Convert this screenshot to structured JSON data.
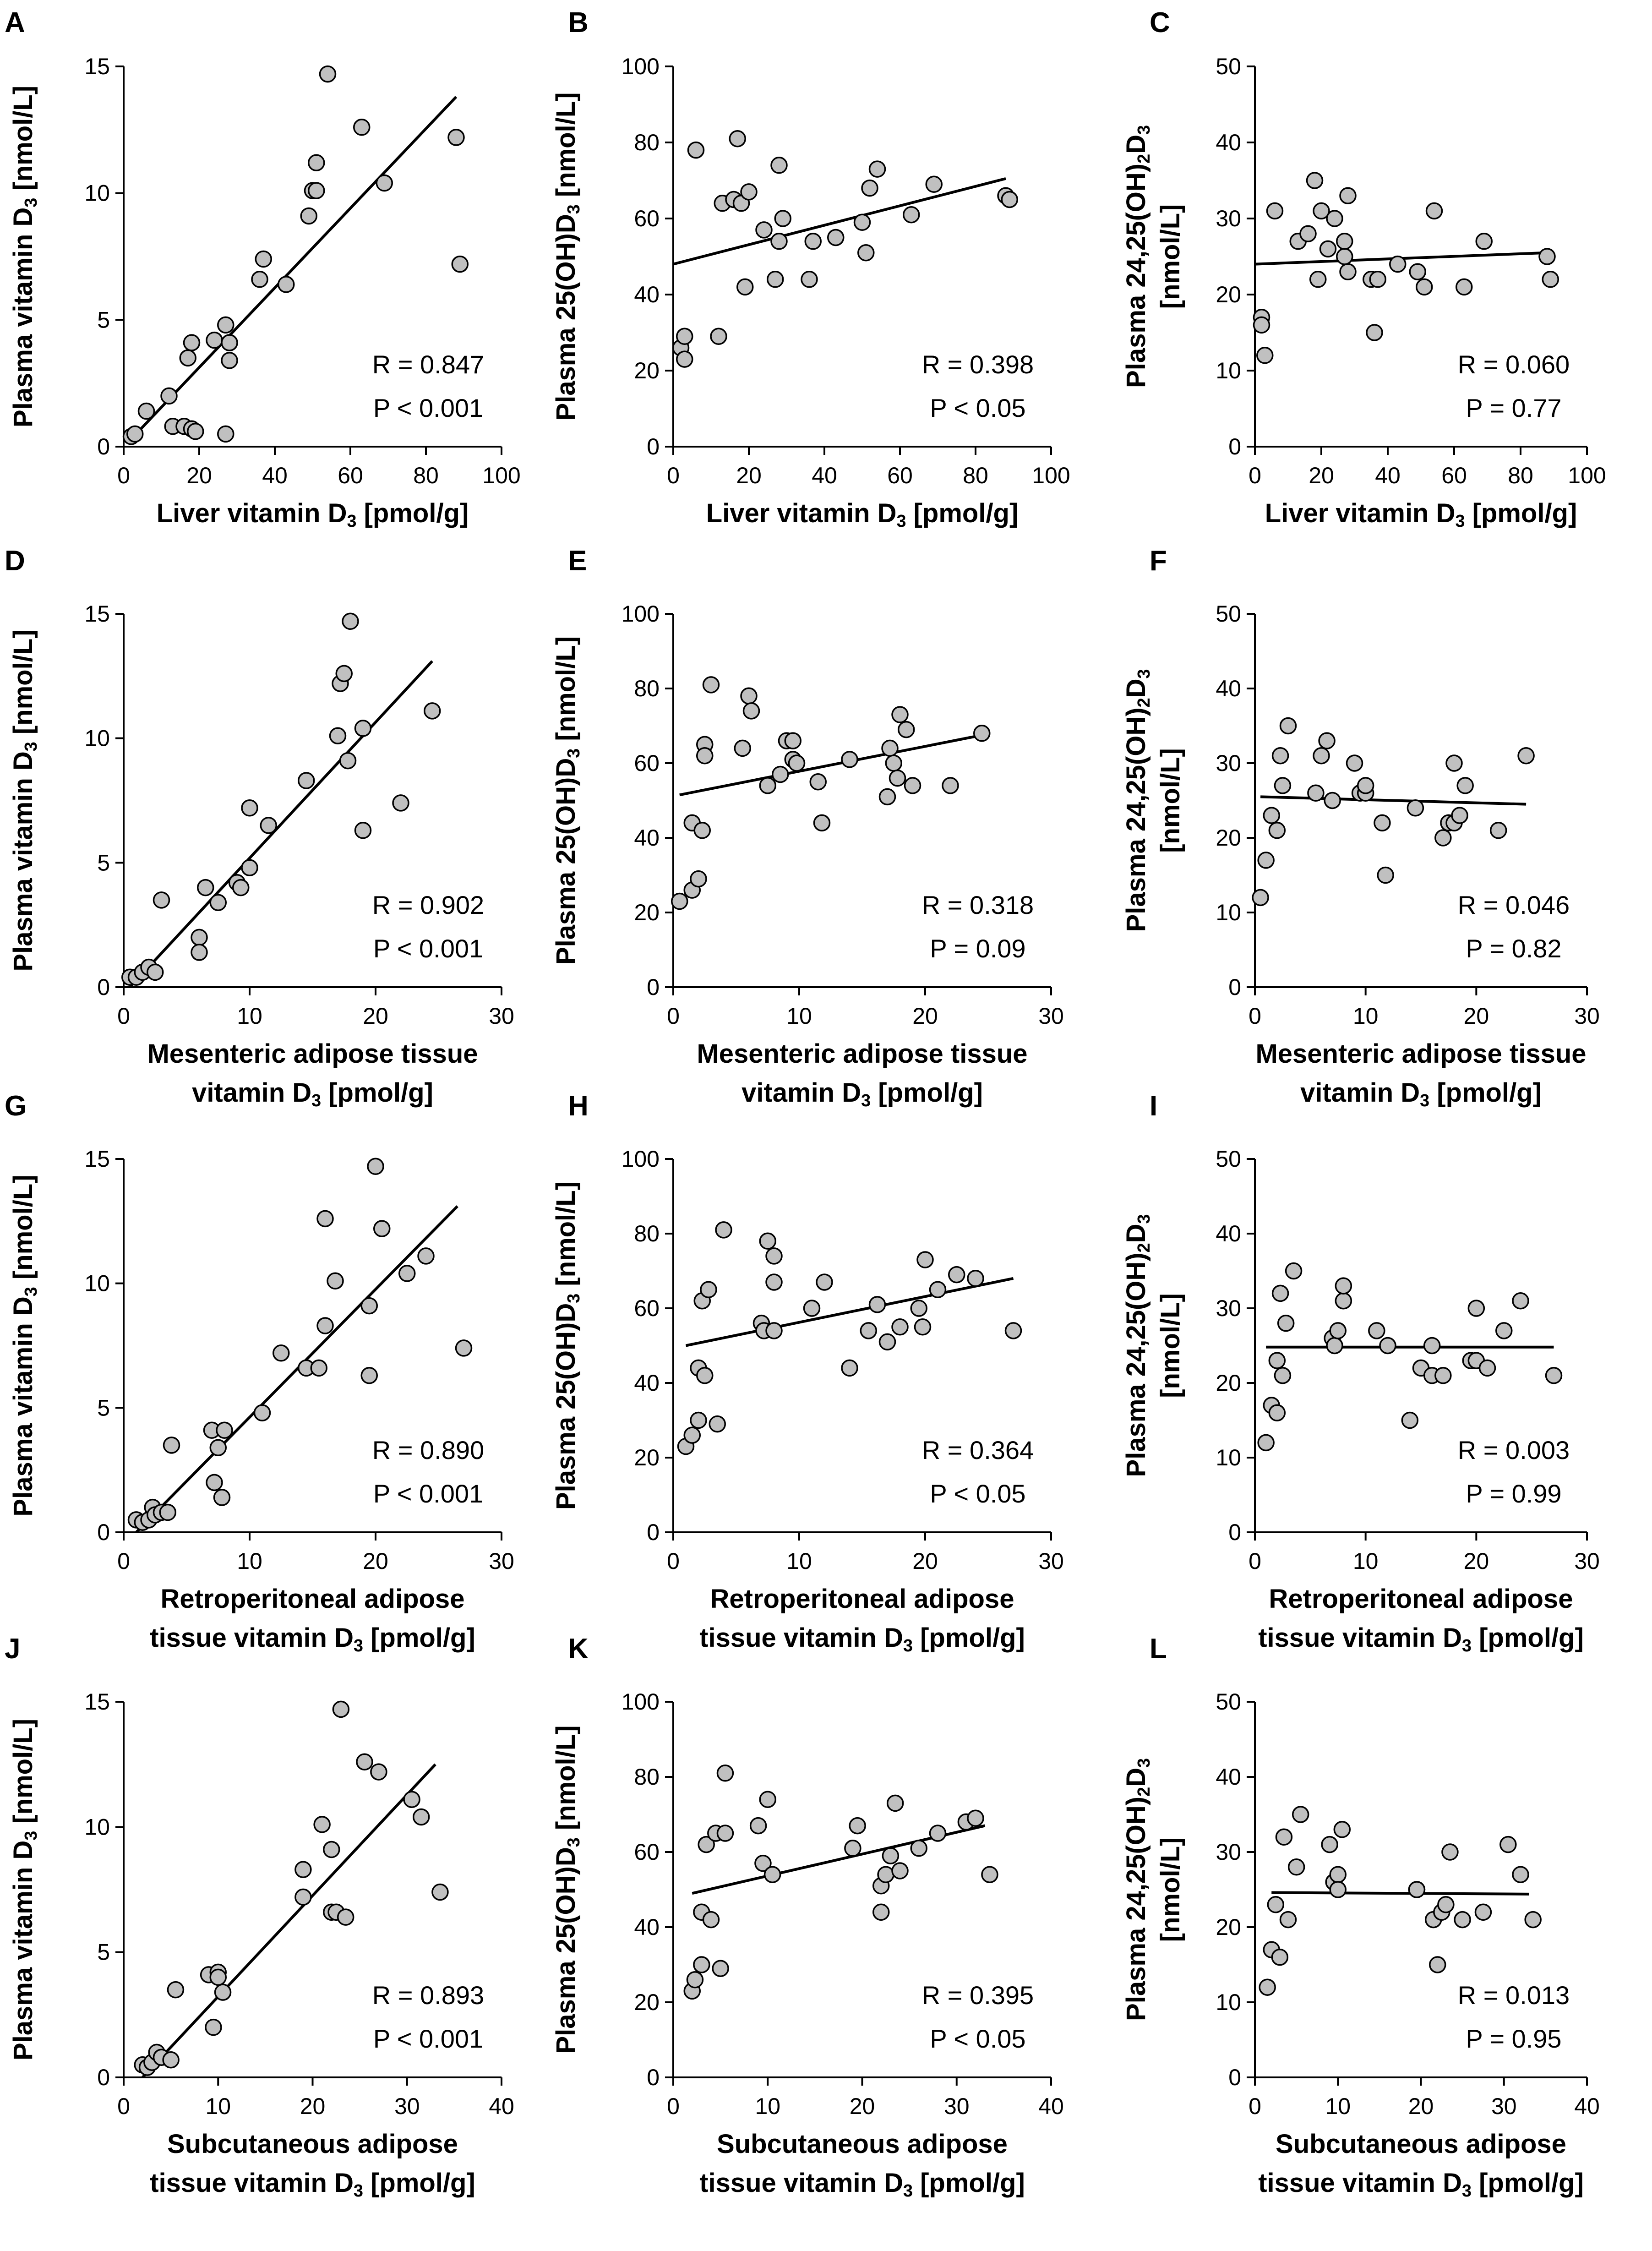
{
  "chart_data": [
    {
      "type": "scatter",
      "panel": "A",
      "xlabel": "Liver vitamin D3 [pmol/g]",
      "ylabel": "Plasma vitamin D3 [nmol/L]",
      "xlim": [
        0,
        100
      ],
      "ylim": [
        0,
        15
      ],
      "xticks": [
        0,
        20,
        40,
        60,
        80,
        100
      ],
      "yticks": [
        0,
        5,
        10,
        15
      ],
      "x": [
        2,
        3,
        6,
        12,
        13,
        16,
        17,
        18,
        19,
        18,
        24,
        27,
        28,
        28,
        27,
        28,
        36,
        37,
        43,
        49,
        50,
        51,
        51,
        54,
        63,
        69,
        88,
        89
      ],
      "y": [
        0.4,
        0.5,
        1.4,
        2,
        0.8,
        0.8,
        3.5,
        0.7,
        0.6,
        4.1,
        4.2,
        4.8,
        4.1,
        3.4,
        0.5,
        4.1,
        6.6,
        7.4,
        6.4,
        9.1,
        10.1,
        11.2,
        10.1,
        14.7,
        12.6,
        10.4,
        12.2,
        7.2
      ],
      "fit": [
        [
          2,
          0.3
        ],
        [
          88,
          13.8
        ]
      ],
      "stats": [
        "R = 0.847",
        "P < 0.001"
      ]
    },
    {
      "type": "scatter",
      "panel": "B",
      "xlabel": "Liver vitamin D3 [pmol/g]",
      "ylabel": "Plasma 25(OH)D3 [nmol/L]",
      "xlim": [
        0,
        100
      ],
      "ylim": [
        0,
        100
      ],
      "xticks": [
        0,
        20,
        40,
        60,
        80,
        100
      ],
      "yticks": [
        0,
        20,
        40,
        60,
        80,
        100
      ],
      "x": [
        2,
        3,
        3,
        6,
        12,
        13,
        16,
        17,
        18,
        19,
        20,
        24,
        27,
        28,
        28,
        29,
        36,
        37,
        43,
        50,
        51,
        52,
        54,
        63,
        69,
        88,
        89
      ],
      "y": [
        26,
        23,
        29,
        78,
        29,
        64,
        65,
        81,
        64,
        42,
        67,
        57,
        44,
        54,
        74,
        60,
        44,
        54,
        55,
        59,
        51,
        68,
        73,
        61,
        69,
        66,
        65
      ],
      "fit": [
        [
          0,
          48
        ],
        [
          88,
          70.5
        ]
      ],
      "stats": [
        "R = 0.398",
        "P < 0.05"
      ]
    },
    {
      "type": "scatter",
      "panel": "C",
      "xlabel": "Liver vitamin D3 [pmol/g]",
      "ylabel": "Plasma 24,25(OH)2D3 [nmol/L]",
      "xlim": [
        0,
        100
      ],
      "ylim": [
        0,
        50
      ],
      "xticks": [
        0,
        20,
        40,
        60,
        80,
        100
      ],
      "yticks": [
        0,
        10,
        20,
        30,
        40,
        50
      ],
      "x": [
        2,
        2,
        3,
        6,
        13,
        16,
        18,
        19,
        20,
        22,
        24,
        27,
        27,
        28,
        28,
        35,
        36,
        37,
        43,
        49,
        51,
        54,
        63,
        69,
        88,
        89
      ],
      "y": [
        17,
        16,
        12,
        31,
        27,
        28,
        35,
        22,
        31,
        26,
        30,
        25,
        27,
        23,
        33,
        22,
        15,
        22,
        24,
        23,
        21,
        31,
        21,
        27,
        25,
        22
      ],
      "fit": [
        [
          0,
          24
        ],
        [
          88,
          25.5
        ]
      ],
      "stats": [
        "R = 0.060",
        "P = 0.77"
      ]
    },
    {
      "type": "scatter",
      "panel": "D",
      "xlabel": "Mesenteric adipose tissue vitamin D3 [pmol/g]",
      "ylabel": "Plasma vitamin D3 [nmol/L]",
      "xlim": [
        0,
        30
      ],
      "ylim": [
        0,
        15
      ],
      "xticks": [
        0,
        10,
        20,
        30
      ],
      "yticks": [
        0,
        5,
        10,
        15
      ],
      "x": [
        0.5,
        1,
        1.5,
        2,
        2.5,
        3,
        6,
        6,
        6.5,
        7.5,
        9,
        9.3,
        10,
        10,
        11.5,
        14.5,
        17,
        17.2,
        17.5,
        17.8,
        18,
        19,
        19,
        22,
        24.5
      ],
      "y": [
        0.4,
        0.4,
        0.6,
        0.8,
        0.6,
        3.5,
        2,
        1.4,
        4,
        3.4,
        4.2,
        4,
        4.8,
        7.2,
        6.5,
        8.3,
        10.1,
        12.2,
        12.6,
        9.1,
        14.7,
        6.3,
        10.4,
        7.4,
        11.1
      ],
      "fit": [
        [
          0.5,
          0
        ],
        [
          24.5,
          13.1
        ]
      ],
      "stats": [
        "R = 0.902",
        "P < 0.001"
      ]
    },
    {
      "type": "scatter",
      "panel": "E",
      "xlabel": "Mesenteric adipose tissue vitamin D3 [pmol/g]",
      "ylabel": "Plasma 25(OH)D3 [nmol/L]",
      "xlim": [
        0,
        30
      ],
      "ylim": [
        0,
        100
      ],
      "xticks": [
        0,
        10,
        20,
        30
      ],
      "yticks": [
        0,
        20,
        40,
        60,
        80,
        100
      ],
      "x": [
        0.5,
        1.5,
        1.5,
        2,
        2.3,
        2.5,
        2.5,
        3,
        5.5,
        6,
        6.2,
        7.5,
        8.5,
        9,
        9.5,
        9.5,
        9.8,
        11.5,
        11.8,
        14,
        17,
        17.2,
        17.5,
        17.8,
        18,
        18.5,
        19,
        22,
        24.5
      ],
      "y": [
        23,
        26,
        44,
        29,
        42,
        65,
        62,
        81,
        64,
        78,
        74,
        54,
        57,
        66,
        66,
        61,
        60,
        55,
        44,
        61,
        51,
        64,
        60,
        56,
        73,
        69,
        54,
        54,
        68
      ],
      "fit": [
        [
          0.5,
          51.5
        ],
        [
          24.5,
          67.5
        ]
      ],
      "stats": [
        "R = 0.318",
        "P = 0.09"
      ]
    },
    {
      "type": "scatter",
      "panel": "F",
      "xlabel": "Mesenteric adipose tissue vitamin D3 [pmol/g]",
      "ylabel": "Plasma 24,25(OH)2D3 [nmol/L]",
      "xlim": [
        0,
        30
      ],
      "ylim": [
        0,
        50
      ],
      "xticks": [
        0,
        10,
        20,
        30
      ],
      "yticks": [
        0,
        10,
        20,
        30,
        40,
        50
      ],
      "x": [
        0.5,
        1,
        1.5,
        2,
        2.3,
        2.5,
        3,
        5.5,
        6,
        6.5,
        7,
        9,
        9.5,
        10,
        10,
        11.5,
        11.8,
        14.5,
        17,
        17.5,
        18,
        18,
        18.5,
        19,
        22,
        24.5
      ],
      "y": [
        12,
        17,
        23,
        21,
        31,
        27,
        35,
        26,
        31,
        33,
        25,
        30,
        26,
        26,
        27,
        22,
        15,
        24,
        20,
        22,
        22,
        30,
        23,
        27,
        21,
        31
      ],
      "fit": [
        [
          0.5,
          25.5
        ],
        [
          24.5,
          24.5
        ]
      ],
      "stats": [
        "R = 0.046",
        "P = 0.82"
      ]
    },
    {
      "type": "scatter",
      "panel": "G",
      "xlabel": "Retroperitoneal adipose tissue vitamin D3 [pmol/g]",
      "ylabel": "Plasma vitamin D3 [nmol/L]",
      "xlim": [
        0,
        30
      ],
      "ylim": [
        0,
        15
      ],
      "xticks": [
        0,
        10,
        20,
        30
      ],
      "yticks": [
        0,
        5,
        10,
        15
      ],
      "x": [
        1,
        1.5,
        2,
        2.3,
        2.5,
        3,
        3.5,
        3.8,
        7,
        7.2,
        7.5,
        7.8,
        8,
        11,
        12.5,
        14.5,
        15.5,
        16,
        16,
        16.8,
        19.5,
        19.5,
        20,
        20.5,
        22.5,
        24,
        27
      ],
      "y": [
        0.5,
        0.4,
        0.5,
        1,
        0.7,
        0.8,
        0.8,
        3.5,
        4.1,
        2,
        3.4,
        1.4,
        4.1,
        4.8,
        7.2,
        6.6,
        6.6,
        8.3,
        12.6,
        10.1,
        6.3,
        9.1,
        14.7,
        12.2,
        10.4,
        11.1,
        7.4
      ],
      "fit": [
        [
          1,
          0
        ],
        [
          26.5,
          13.1
        ]
      ],
      "stats": [
        "R = 0.890",
        "P < 0.001"
      ]
    },
    {
      "type": "scatter",
      "panel": "H",
      "xlabel": "Retroperitoneal adipose tissue vitamin D3 [pmol/g]",
      "ylabel": "Plasma 25(OH)D3 [nmol/L]",
      "xlim": [
        0,
        30
      ],
      "ylim": [
        0,
        100
      ],
      "xticks": [
        0,
        10,
        20,
        30
      ],
      "yticks": [
        0,
        20,
        40,
        60,
        80,
        100
      ],
      "x": [
        1,
        1.5,
        2,
        2,
        2.3,
        2.5,
        2.8,
        3.5,
        4,
        7,
        7.2,
        7.5,
        8,
        8,
        8,
        11,
        12,
        14,
        15.5,
        16.2,
        17,
        18,
        19.5,
        19.8,
        20,
        21,
        22.5,
        24,
        27
      ],
      "y": [
        23,
        26,
        30,
        44,
        62,
        42,
        65,
        29,
        81,
        56,
        54,
        78,
        74,
        67,
        54,
        60,
        67,
        44,
        54,
        61,
        51,
        55,
        60,
        55,
        73,
        65,
        69,
        68,
        54
      ],
      "fit": [
        [
          1,
          50
        ],
        [
          27,
          68
        ]
      ],
      "stats": [
        "R = 0.364",
        "P < 0.05"
      ]
    },
    {
      "type": "scatter",
      "panel": "I",
      "xlabel": "Retroperitoneal adipose tissue vitamin D3 [pmol/g]",
      "ylabel": "Plasma 24,25(OH)2D3 [nmol/L]",
      "xlim": [
        0,
        30
      ],
      "ylim": [
        0,
        50
      ],
      "xticks": [
        0,
        10,
        20,
        30
      ],
      "yticks": [
        0,
        10,
        20,
        30,
        40,
        50
      ],
      "x": [
        1,
        1.5,
        2,
        2,
        2.3,
        2.5,
        2.8,
        3.5,
        7,
        7.2,
        7.5,
        8,
        8,
        11,
        12,
        14,
        15,
        16,
        16,
        17,
        19.5,
        20,
        20,
        21,
        22.5,
        24,
        27
      ],
      "y": [
        12,
        17,
        23,
        16,
        32,
        21,
        28,
        35,
        26,
        25,
        27,
        31,
        33,
        27,
        25,
        15,
        22,
        21,
        25,
        21,
        23,
        23,
        30,
        22,
        27,
        31,
        21
      ],
      "fit": [
        [
          1,
          24.8
        ],
        [
          27,
          24.8
        ]
      ],
      "stats": [
        "R = 0.003",
        "P = 0.99"
      ]
    },
    {
      "type": "scatter",
      "panel": "J",
      "xlabel": "Subcutaneous adipose tissue vitamin D3 [pmol/g]",
      "ylabel": "Plasma vitamin D3 [nmol/L]",
      "xlim": [
        0,
        40
      ],
      "ylim": [
        0,
        15
      ],
      "xticks": [
        0,
        10,
        20,
        30,
        40
      ],
      "yticks": [
        0,
        5,
        10,
        15
      ],
      "x": [
        2,
        2.5,
        3,
        3.5,
        4,
        5,
        5.5,
        9,
        9.5,
        10,
        10,
        10.5,
        19,
        19,
        21,
        22,
        22,
        22.5,
        23,
        23.5,
        25.5,
        27,
        30.5,
        31.5,
        33.5
      ],
      "y": [
        0.5,
        0.4,
        0.6,
        1,
        0.8,
        0.7,
        3.5,
        4.1,
        2,
        4.2,
        4,
        3.4,
        7.2,
        8.3,
        10.1,
        6.6,
        9.1,
        6.6,
        14.7,
        6.4,
        12.6,
        12.2,
        11.1,
        10.4,
        7.4
      ],
      "fit": [
        [
          2,
          0
        ],
        [
          33,
          12.5
        ]
      ],
      "stats": [
        "R = 0.893",
        "P < 0.001"
      ]
    },
    {
      "type": "scatter",
      "panel": "K",
      "xlabel": "Subcutaneous adipose tissue vitamin D3 [pmol/g]",
      "ylabel": "Plasma 25(OH)D3 [nmol/L]",
      "xlim": [
        0,
        40
      ],
      "ylim": [
        0,
        100
      ],
      "xticks": [
        0,
        10,
        20,
        30,
        40
      ],
      "yticks": [
        0,
        20,
        40,
        60,
        80,
        100
      ],
      "x": [
        2,
        2.3,
        3,
        3,
        3.5,
        4,
        4.5,
        5,
        5.5,
        5.5,
        9,
        9.5,
        10,
        10.5,
        19,
        19.5,
        22,
        22,
        22.5,
        23,
        23.5,
        24,
        26,
        28,
        31,
        32,
        33.5
      ],
      "y": [
        23,
        26,
        30,
        44,
        62,
        42,
        65,
        29,
        81,
        65,
        67,
        57,
        74,
        54,
        61,
        67,
        51,
        44,
        54,
        59,
        73,
        55,
        61,
        65,
        68,
        69,
        54
      ],
      "fit": [
        [
          2,
          49
        ],
        [
          33,
          67
        ]
      ],
      "stats": [
        "R = 0.395",
        "P < 0.05"
      ]
    },
    {
      "type": "scatter",
      "panel": "L",
      "xlabel": "Subcutaneous adipose tissue vitamin D3 [pmol/g]",
      "ylabel": "Plasma 24,25(OH)2D3 [nmol/L]",
      "xlim": [
        0,
        40
      ],
      "ylim": [
        0,
        50
      ],
      "xticks": [
        0,
        10,
        20,
        30,
        40
      ],
      "yticks": [
        0,
        10,
        20,
        30,
        40,
        50
      ],
      "x": [
        1.5,
        2,
        2.5,
        3,
        3.5,
        4,
        5,
        5.5,
        9,
        9.5,
        10,
        10,
        10.5,
        19.5,
        19.5,
        21.5,
        22,
        22.5,
        23,
        23.5,
        25,
        27.5,
        30.5,
        32,
        33.5
      ],
      "y": [
        12,
        17,
        23,
        16,
        32,
        21,
        28,
        35,
        31,
        26,
        27,
        25,
        33,
        25,
        25,
        21,
        15,
        22,
        23,
        30,
        21,
        22,
        31,
        27,
        21
      ],
      "fit": [
        [
          2,
          24.6
        ],
        [
          33,
          24.4
        ]
      ],
      "stats": [
        "R = 0.013",
        "P = 0.95"
      ]
    }
  ],
  "colors": {
    "marker_fill": "#c0c0c0",
    "marker_stroke": "#000000",
    "line": "#000000",
    "axis": "#000000"
  }
}
